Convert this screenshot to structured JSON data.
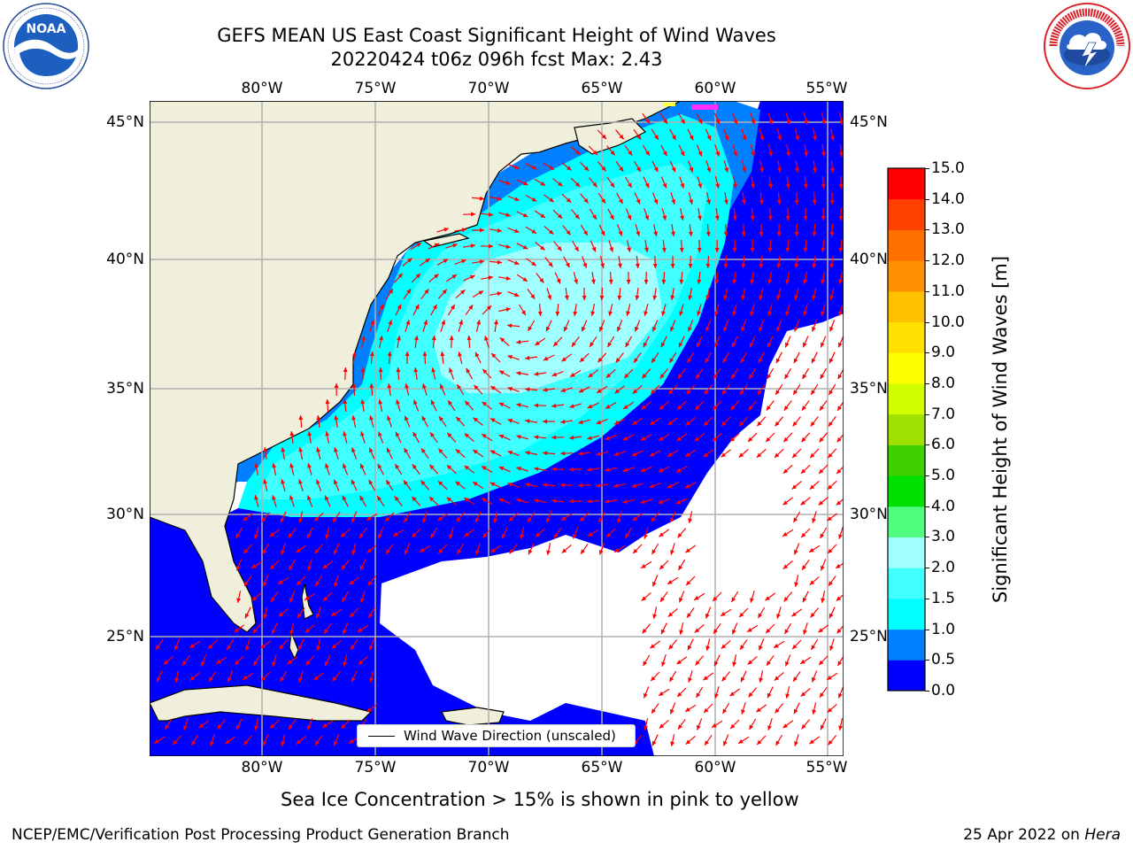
{
  "header": {
    "title_line1": "GEFS MEAN US East Coast Significant Height of Wind Waves",
    "title_line2": "20220424 t06z 096h fcst   Max: 2.43"
  },
  "logos": {
    "left": {
      "name": "NOAA",
      "ring_text": "NATIONAL OCEANIC AND ATMOSPHERIC ADMINISTRATION · U.S. DEPARTMENT OF COMMERCE"
    },
    "right": {
      "name": "NATIONAL WEATHER SERVICE"
    }
  },
  "map": {
    "lon_ticks": [
      "80°W",
      "75°W",
      "70°W",
      "65°W",
      "60°W",
      "55°W"
    ],
    "lat_ticks": [
      "45°N",
      "40°N",
      "35°N",
      "30°N",
      "25°N"
    ],
    "extent": {
      "lon_min": -85,
      "lon_max": -54.3,
      "lat_min": 20.5,
      "lat_max": 46.5
    },
    "land_color": "#efefdc",
    "grid": true
  },
  "legend": {
    "label": "Wind Wave Direction (unscaled)",
    "arrow_color": "#ff0000"
  },
  "colorbar": {
    "label": "Significant Height of Wind Waves [m]",
    "ticks": [
      "0.0",
      "0.5",
      "1.0",
      "1.5",
      "2.0",
      "3.0",
      "4.0",
      "5.0",
      "6.0",
      "7.0",
      "8.0",
      "9.0",
      "10.0",
      "11.0",
      "12.0",
      "13.0",
      "14.0",
      "15.0"
    ],
    "colors": [
      "#0000ff",
      "#0080ff",
      "#00ffff",
      "#40ffff",
      "#a0ffff",
      "#50ff80",
      "#00e000",
      "#40d000",
      "#a0e000",
      "#d0ff00",
      "#ffff00",
      "#ffe000",
      "#ffc000",
      "#ff9000",
      "#ff7000",
      "#ff4000",
      "#ff0000"
    ]
  },
  "subtitle": "Sea Ice Concentration > 15% is shown in pink to yellow",
  "footer": {
    "left": "NCEP/EMC/Verification Post Processing Product Generation Branch",
    "right_prefix": "25 Apr 2022 on ",
    "right_host": "Hera"
  }
}
